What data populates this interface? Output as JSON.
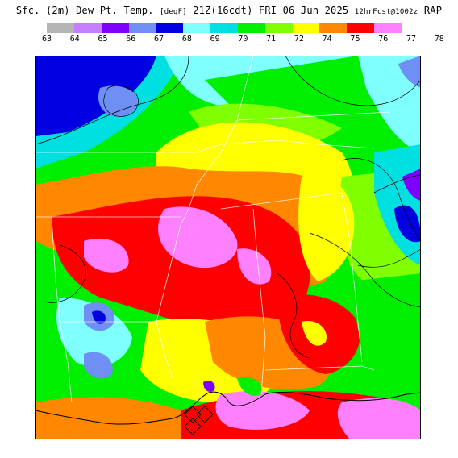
{
  "title": {
    "main": "Sfc. (2m) Dew Pt. Temp.",
    "units": "[degF]",
    "valid": "21Z(16cdt) FRI 06 Jun 2025",
    "run": "12hrFcst@1002z",
    "model": "RAP"
  },
  "legend": {
    "labels": [
      "63",
      "64",
      "65",
      "66",
      "67",
      "68",
      "69",
      "70",
      "71",
      "72",
      "74",
      "75",
      "76",
      "77",
      "78"
    ],
    "colors": [
      "#b4b4b4",
      "#c680ff",
      "#8000ff",
      "#6f8ff5",
      "#0000e0",
      "#80ffff",
      "#00e0e0",
      "#00ee00",
      "#80ff00",
      "#ffff00",
      "#ff8800",
      "#ff0000",
      "#ff80ff"
    ]
  },
  "map": {
    "region": "Lower Mississippi Valley / Gulf Coast",
    "features": [
      "dew-point-shading",
      "state-borders",
      "isodrosotherm-contours",
      "coastline"
    ]
  }
}
